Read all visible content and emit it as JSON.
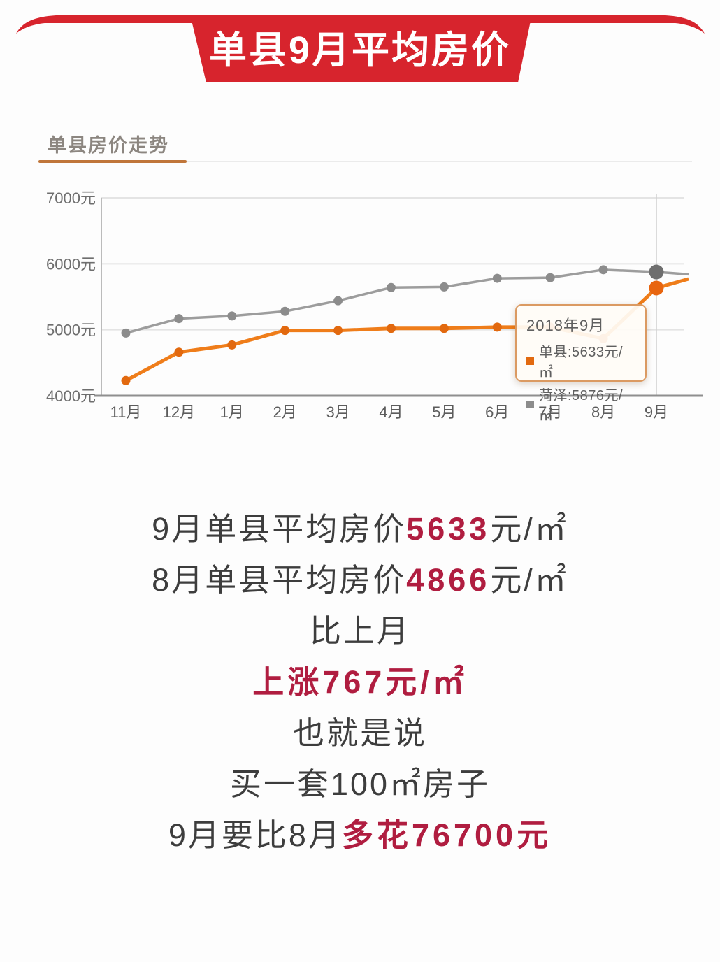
{
  "banner": {
    "title": "单县9月平均房价",
    "ribbon_color": "#d7242d",
    "text_color": "#ffffff"
  },
  "section": {
    "title": "单县房价走势",
    "accent_color": "#c0763a"
  },
  "chart_data": {
    "type": "line",
    "title": "单县房价走势",
    "categories": [
      "11月",
      "12月",
      "1月",
      "2月",
      "3月",
      "4月",
      "5月",
      "6月",
      "7月",
      "8月",
      "9月"
    ],
    "series": [
      {
        "name": "单县",
        "color": "#ef7d1a",
        "dot_color": "#e2690f",
        "highlight_dot_color": "#e8650f",
        "values": [
          4230,
          4660,
          4770,
          4990,
          4990,
          5020,
          5020,
          5040,
          5040,
          4866,
          5633
        ],
        "edge_value": 5770
      },
      {
        "name": "菏泽",
        "color": "#9d9d9d",
        "dot_color": "#8c8c8c",
        "highlight_dot_color": "#6e6e6e",
        "values": [
          4950,
          5170,
          5210,
          5280,
          5440,
          5640,
          5650,
          5780,
          5790,
          5910,
          5876
        ],
        "edge_value": 5840
      }
    ],
    "xlabel": "",
    "ylabel": "",
    "ylim": [
      4000,
      7000
    ],
    "ytick": 1000,
    "yunit": "元",
    "grid": true,
    "highlight_index": 10,
    "tooltip": {
      "title": "2018年9月",
      "rows": [
        {
          "swatch": "#e2690f",
          "text": "单县:5633元/㎡"
        },
        {
          "swatch": "#8c8c8c",
          "text": "菏泽:5876元/㎡"
        }
      ]
    }
  },
  "body": {
    "lines": [
      {
        "pre": "9月单县平均房价",
        "em": "5633",
        "post": "元/㎡"
      },
      {
        "pre": "8月单县平均房价",
        "em": "4866",
        "post": "元/㎡"
      },
      {
        "pre": "比上月"
      },
      {
        "em": "上涨767元/㎡"
      },
      {
        "pre": "也就是说"
      },
      {
        "pre": "买一套100㎡房子"
      },
      {
        "pre": "9月要比8月",
        "em": "多花76700元"
      }
    ]
  }
}
